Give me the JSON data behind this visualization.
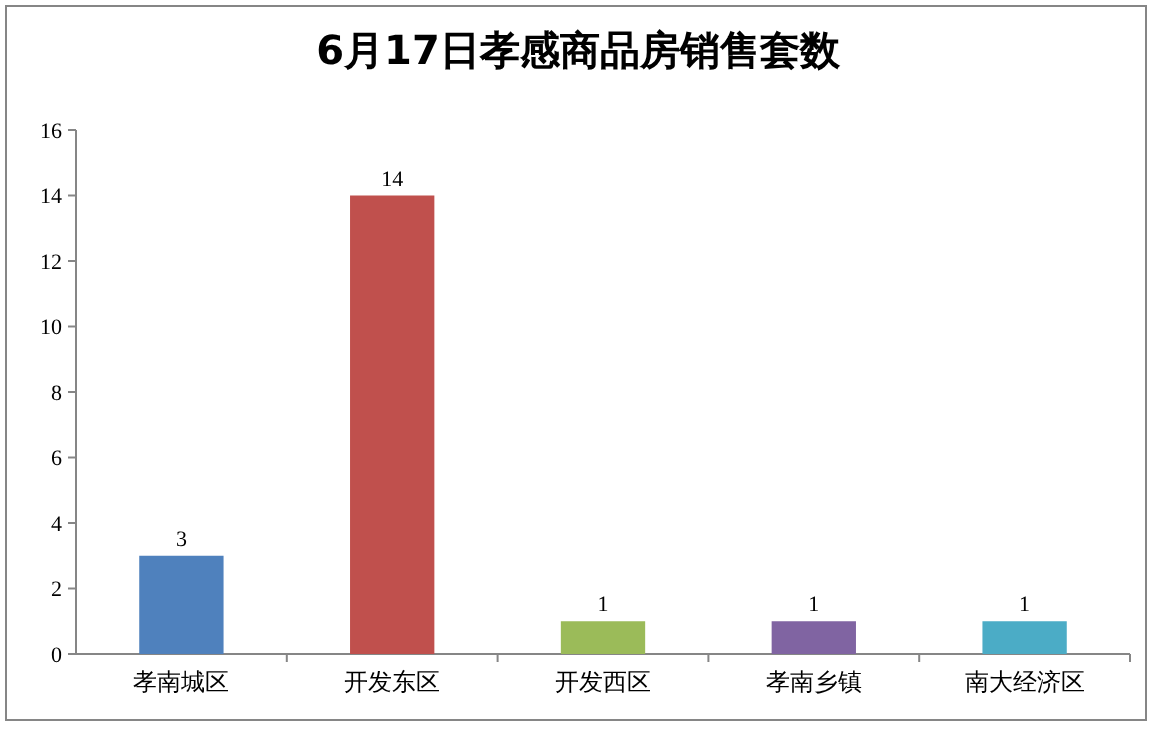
{
  "chart_data": {
    "type": "bar",
    "title": "6月17日孝感商品房销售套数",
    "categories": [
      "孝南城区",
      "开发东区",
      "开发西区",
      "孝南乡镇",
      "南大经济区"
    ],
    "values": [
      3,
      14,
      1,
      1,
      1
    ],
    "colors": [
      "#4f81bd",
      "#c0504d",
      "#9bbb59",
      "#8064a2",
      "#4bacc6"
    ],
    "ylim": [
      0,
      16
    ],
    "yticks": [
      0,
      2,
      4,
      6,
      8,
      10,
      12,
      14,
      16
    ],
    "grid": false,
    "data_labels": true
  }
}
